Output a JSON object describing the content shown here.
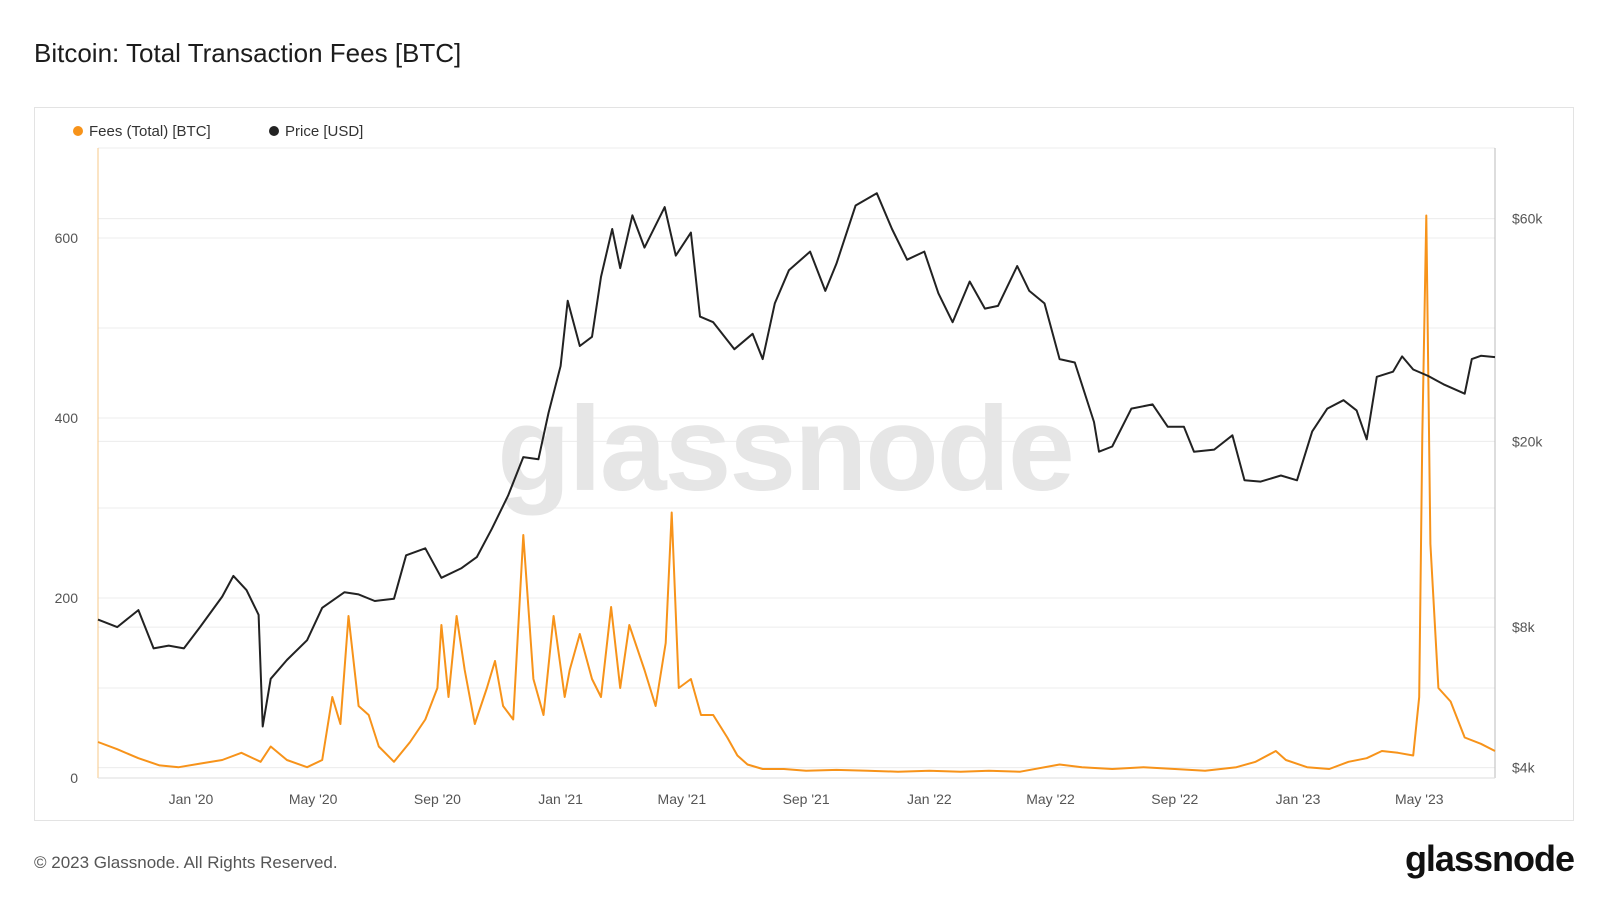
{
  "title": "Bitcoin: Total Transaction Fees [BTC]",
  "footer": {
    "copyright": "© 2023 Glassnode. All Rights Reserved.",
    "logo": "glassnode"
  },
  "watermark": "glassnode",
  "colors": {
    "fees": "#f7931a",
    "price": "#222222",
    "grid": "#ececec"
  },
  "chart_data": {
    "type": "line",
    "title": "Bitcoin: Total Transaction Fees [BTC]",
    "legend_position": "top-left",
    "grid": true,
    "x": {
      "start": "2019-10-01",
      "end": "2023-07-15",
      "tick_labels": [
        "Jan '20",
        "May '20",
        "Sep '20",
        "Jan '21",
        "May '21",
        "Sep '21",
        "Jan '22",
        "May '22",
        "Sep '22",
        "Jan '23",
        "May '23"
      ],
      "tick_dates": [
        "2020-01-01",
        "2020-05-01",
        "2020-09-01",
        "2021-01-01",
        "2021-05-01",
        "2021-09-01",
        "2022-01-01",
        "2022-05-01",
        "2022-09-01",
        "2023-01-01",
        "2023-05-01"
      ]
    },
    "y_left": {
      "ylim": [
        0,
        700
      ],
      "ticks": [
        0,
        200,
        400,
        600
      ],
      "tick_labels": [
        "0",
        "200",
        "400",
        "600"
      ]
    },
    "y_right": {
      "scale": "log",
      "ylim": [
        3800,
        85000
      ],
      "ticks": [
        4000,
        8000,
        20000,
        60000
      ],
      "tick_labels": [
        "$4k",
        "$8k",
        "$20k",
        "$60k"
      ]
    },
    "series": [
      {
        "name": "Fees (Total) [BTC]",
        "axis": "left",
        "points": [
          [
            "2019-10-01",
            40
          ],
          [
            "2019-10-20",
            32
          ],
          [
            "2019-11-10",
            22
          ],
          [
            "2019-12-01",
            14
          ],
          [
            "2019-12-20",
            12
          ],
          [
            "2020-01-10",
            16
          ],
          [
            "2020-02-01",
            20
          ],
          [
            "2020-02-20",
            28
          ],
          [
            "2020-03-10",
            18
          ],
          [
            "2020-03-20",
            35
          ],
          [
            "2020-04-05",
            20
          ],
          [
            "2020-04-25",
            12
          ],
          [
            "2020-05-10",
            20
          ],
          [
            "2020-05-20",
            90
          ],
          [
            "2020-05-28",
            60
          ],
          [
            "2020-06-05",
            180
          ],
          [
            "2020-06-15",
            80
          ],
          [
            "2020-06-25",
            70
          ],
          [
            "2020-07-05",
            35
          ],
          [
            "2020-07-20",
            18
          ],
          [
            "2020-08-05",
            40
          ],
          [
            "2020-08-20",
            65
          ],
          [
            "2020-09-01",
            100
          ],
          [
            "2020-09-05",
            170
          ],
          [
            "2020-09-12",
            90
          ],
          [
            "2020-09-20",
            180
          ],
          [
            "2020-09-28",
            120
          ],
          [
            "2020-10-08",
            60
          ],
          [
            "2020-10-20",
            100
          ],
          [
            "2020-10-28",
            130
          ],
          [
            "2020-11-05",
            80
          ],
          [
            "2020-11-15",
            65
          ],
          [
            "2020-11-25",
            270
          ],
          [
            "2020-12-05",
            110
          ],
          [
            "2020-12-15",
            70
          ],
          [
            "2020-12-25",
            180
          ],
          [
            "2021-01-05",
            90
          ],
          [
            "2021-01-10",
            120
          ],
          [
            "2021-01-20",
            160
          ],
          [
            "2021-02-01",
            110
          ],
          [
            "2021-02-10",
            90
          ],
          [
            "2021-02-20",
            190
          ],
          [
            "2021-03-01",
            100
          ],
          [
            "2021-03-10",
            170
          ],
          [
            "2021-03-25",
            120
          ],
          [
            "2021-04-05",
            80
          ],
          [
            "2021-04-15",
            150
          ],
          [
            "2021-04-21",
            295
          ],
          [
            "2021-04-28",
            100
          ],
          [
            "2021-05-10",
            110
          ],
          [
            "2021-05-20",
            70
          ],
          [
            "2021-06-01",
            70
          ],
          [
            "2021-06-15",
            45
          ],
          [
            "2021-06-25",
            25
          ],
          [
            "2021-07-05",
            15
          ],
          [
            "2021-07-20",
            10
          ],
          [
            "2021-08-10",
            10
          ],
          [
            "2021-09-01",
            8
          ],
          [
            "2021-10-01",
            9
          ],
          [
            "2021-11-01",
            8
          ],
          [
            "2021-12-01",
            7
          ],
          [
            "2022-01-01",
            8
          ],
          [
            "2022-02-01",
            7
          ],
          [
            "2022-03-01",
            8
          ],
          [
            "2022-04-01",
            7
          ],
          [
            "2022-05-10",
            15
          ],
          [
            "2022-06-01",
            12
          ],
          [
            "2022-07-01",
            10
          ],
          [
            "2022-08-01",
            12
          ],
          [
            "2022-09-01",
            10
          ],
          [
            "2022-10-01",
            8
          ],
          [
            "2022-11-01",
            12
          ],
          [
            "2022-11-20",
            18
          ],
          [
            "2022-12-10",
            30
          ],
          [
            "2022-12-20",
            20
          ],
          [
            "2023-01-10",
            12
          ],
          [
            "2023-02-01",
            10
          ],
          [
            "2023-02-20",
            18
          ],
          [
            "2023-03-10",
            22
          ],
          [
            "2023-03-25",
            30
          ],
          [
            "2023-04-10",
            28
          ],
          [
            "2023-04-25",
            25
          ],
          [
            "2023-05-01",
            90
          ],
          [
            "2023-05-04",
            380
          ],
          [
            "2023-05-08",
            625
          ],
          [
            "2023-05-12",
            260
          ],
          [
            "2023-05-20",
            100
          ],
          [
            "2023-06-01",
            85
          ],
          [
            "2023-06-15",
            45
          ],
          [
            "2023-07-01",
            38
          ],
          [
            "2023-07-15",
            30
          ]
        ]
      },
      {
        "name": "Price [USD]",
        "axis": "right",
        "points": [
          [
            "2019-10-01",
            8300
          ],
          [
            "2019-10-20",
            8000
          ],
          [
            "2019-11-10",
            8700
          ],
          [
            "2019-11-25",
            7200
          ],
          [
            "2019-12-10",
            7300
          ],
          [
            "2019-12-25",
            7200
          ],
          [
            "2020-01-10",
            8000
          ],
          [
            "2020-02-01",
            9300
          ],
          [
            "2020-02-12",
            10300
          ],
          [
            "2020-02-25",
            9600
          ],
          [
            "2020-03-08",
            8500
          ],
          [
            "2020-03-12",
            4900
          ],
          [
            "2020-03-20",
            6200
          ],
          [
            "2020-04-05",
            6800
          ],
          [
            "2020-04-25",
            7500
          ],
          [
            "2020-05-10",
            8800
          ],
          [
            "2020-06-01",
            9500
          ],
          [
            "2020-06-15",
            9400
          ],
          [
            "2020-07-01",
            9100
          ],
          [
            "2020-07-20",
            9200
          ],
          [
            "2020-08-01",
            11400
          ],
          [
            "2020-08-20",
            11800
          ],
          [
            "2020-09-05",
            10200
          ],
          [
            "2020-09-25",
            10700
          ],
          [
            "2020-10-10",
            11300
          ],
          [
            "2020-10-25",
            13000
          ],
          [
            "2020-11-10",
            15300
          ],
          [
            "2020-11-25",
            18500
          ],
          [
            "2020-12-10",
            18300
          ],
          [
            "2020-12-20",
            23000
          ],
          [
            "2021-01-01",
            29000
          ],
          [
            "2021-01-08",
            40000
          ],
          [
            "2021-01-20",
            32000
          ],
          [
            "2021-02-01",
            33500
          ],
          [
            "2021-02-10",
            45000
          ],
          [
            "2021-02-21",
            57000
          ],
          [
            "2021-03-01",
            47000
          ],
          [
            "2021-03-13",
            61000
          ],
          [
            "2021-03-25",
            52000
          ],
          [
            "2021-04-14",
            63500
          ],
          [
            "2021-04-25",
            50000
          ],
          [
            "2021-05-10",
            56000
          ],
          [
            "2021-05-19",
            37000
          ],
          [
            "2021-06-01",
            36000
          ],
          [
            "2021-06-22",
            31500
          ],
          [
            "2021-07-10",
            34000
          ],
          [
            "2021-07-20",
            30000
          ],
          [
            "2021-08-01",
            39500
          ],
          [
            "2021-08-15",
            46500
          ],
          [
            "2021-09-05",
            51000
          ],
          [
            "2021-09-20",
            42000
          ],
          [
            "2021-10-01",
            48000
          ],
          [
            "2021-10-20",
            64000
          ],
          [
            "2021-11-10",
            68000
          ],
          [
            "2021-11-25",
            57000
          ],
          [
            "2021-12-10",
            49000
          ],
          [
            "2021-12-27",
            51000
          ],
          [
            "2022-01-10",
            41500
          ],
          [
            "2022-01-24",
            36000
          ],
          [
            "2022-02-10",
            44000
          ],
          [
            "2022-02-25",
            38500
          ],
          [
            "2022-03-10",
            39000
          ],
          [
            "2022-03-29",
            47500
          ],
          [
            "2022-04-10",
            42000
          ],
          [
            "2022-04-25",
            39500
          ],
          [
            "2022-05-10",
            30000
          ],
          [
            "2022-05-25",
            29500
          ],
          [
            "2022-06-13",
            22000
          ],
          [
            "2022-06-18",
            19000
          ],
          [
            "2022-07-01",
            19500
          ],
          [
            "2022-07-20",
            23500
          ],
          [
            "2022-08-10",
            24000
          ],
          [
            "2022-08-25",
            21500
          ],
          [
            "2022-09-10",
            21500
          ],
          [
            "2022-09-20",
            19000
          ],
          [
            "2022-10-10",
            19200
          ],
          [
            "2022-10-28",
            20600
          ],
          [
            "2022-11-09",
            16500
          ],
          [
            "2022-11-25",
            16400
          ],
          [
            "2022-12-15",
            16900
          ],
          [
            "2022-12-31",
            16500
          ],
          [
            "2023-01-15",
            21000
          ],
          [
            "2023-01-30",
            23500
          ],
          [
            "2023-02-15",
            24500
          ],
          [
            "2023-02-28",
            23300
          ],
          [
            "2023-03-10",
            20200
          ],
          [
            "2023-03-20",
            27500
          ],
          [
            "2023-04-05",
            28200
          ],
          [
            "2023-04-14",
            30400
          ],
          [
            "2023-04-25",
            28500
          ],
          [
            "2023-05-10",
            27600
          ],
          [
            "2023-05-25",
            26500
          ],
          [
            "2023-06-15",
            25300
          ],
          [
            "2023-06-22",
            30000
          ],
          [
            "2023-07-01",
            30500
          ],
          [
            "2023-07-15",
            30300
          ]
        ]
      }
    ]
  }
}
